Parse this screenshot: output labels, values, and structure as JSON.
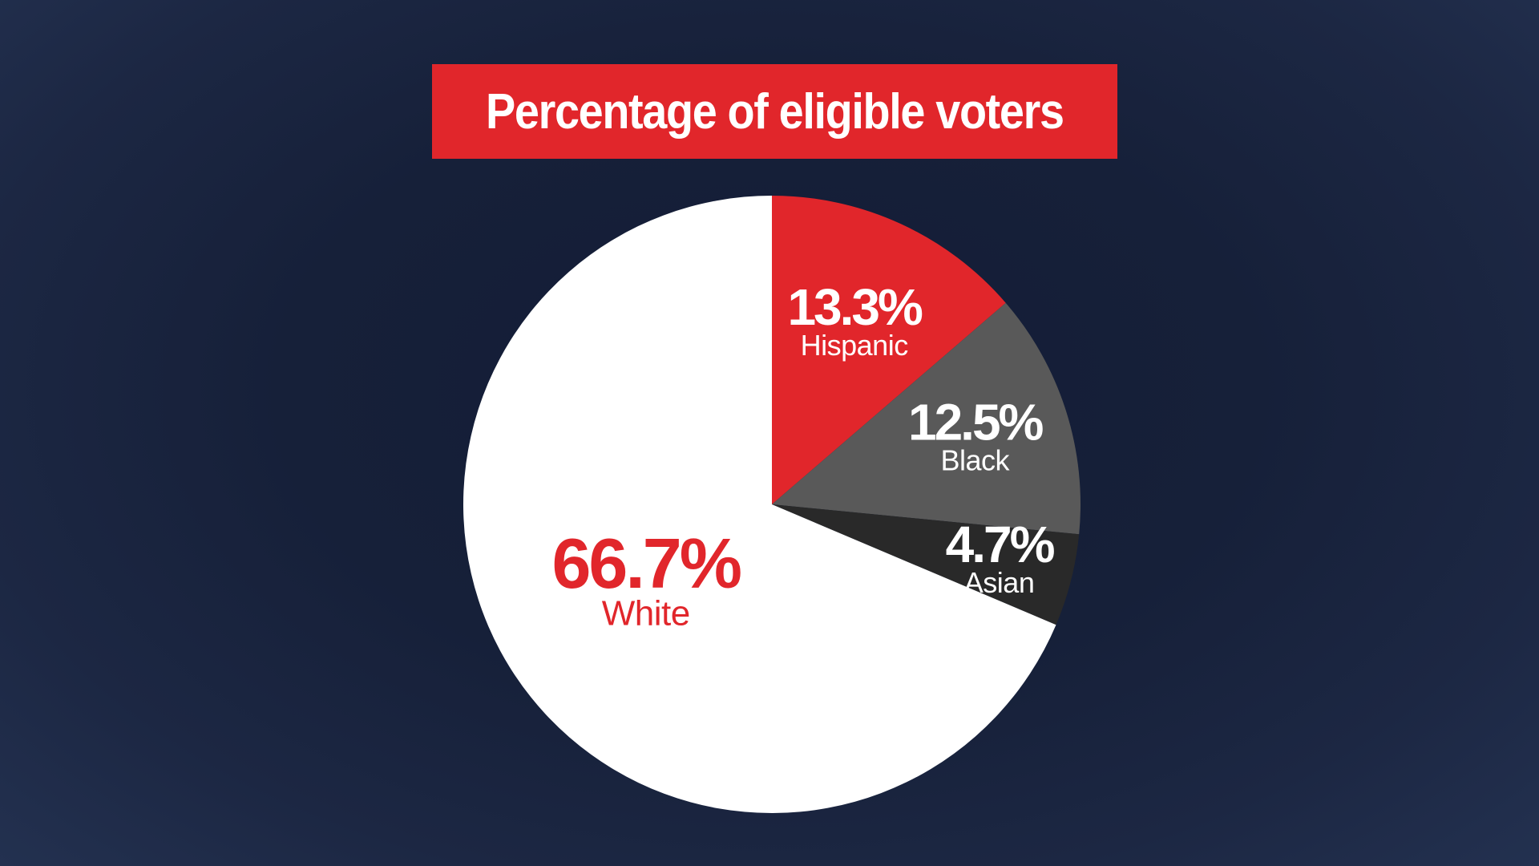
{
  "chart_data": {
    "type": "pie",
    "title": "Percentage of eligible voters",
    "unit": "%",
    "slices": [
      {
        "label": "Hispanic",
        "value": 13.3,
        "display": "13.3%",
        "color": "#e1262b",
        "text_color": "#ffffff"
      },
      {
        "label": "Black",
        "value": 12.5,
        "display": "12.5%",
        "color": "#595959",
        "text_color": "#ffffff"
      },
      {
        "label": "Asian",
        "value": 4.7,
        "display": "4.7%",
        "color": "#292929",
        "text_color": "#ffffff"
      },
      {
        "label": "White",
        "value": 66.7,
        "display": "66.7%",
        "color": "#ffffff",
        "text_color": "#e1262b"
      }
    ],
    "start_angle_deg": 0,
    "direction": "clockwise",
    "legend": "none"
  },
  "colors": {
    "accent": "#e1262b",
    "background": "#162039"
  }
}
